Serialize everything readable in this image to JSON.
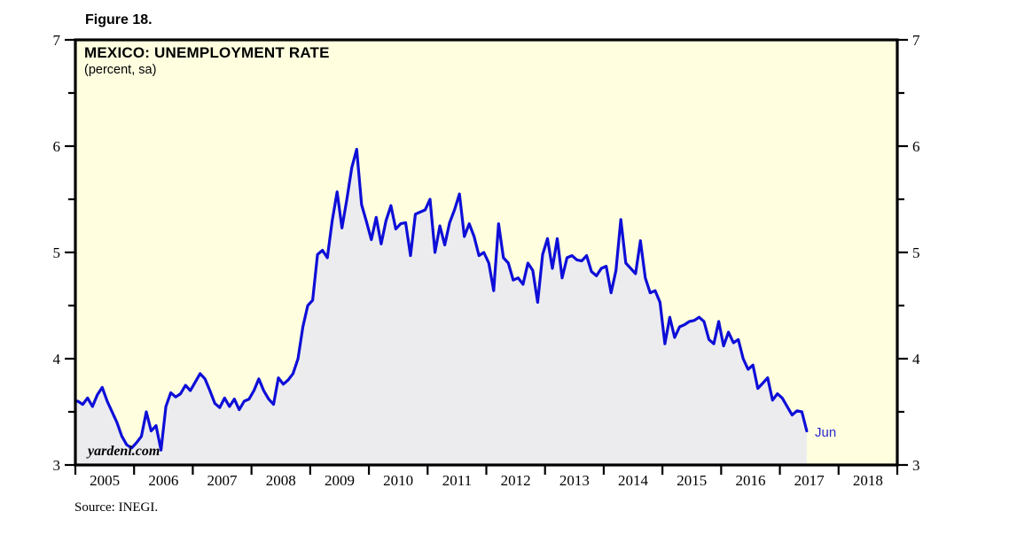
{
  "figure": {
    "label": "Figure 18."
  },
  "source_note": "Source: INEGI.",
  "chart_data": {
    "type": "area",
    "title": "MEXICO: UNEMPLOYMENT RATE",
    "subtitle": "(percent, sa)",
    "watermark": "yardeni.com",
    "last_point_label": "Jun",
    "grid": false,
    "legend": false,
    "x_axis": {
      "start_year": 2005,
      "end_year": 2019,
      "year_labels": [
        "2005",
        "2006",
        "2007",
        "2008",
        "2009",
        "2010",
        "2011",
        "2012",
        "2013",
        "2014",
        "2015",
        "2016",
        "2017",
        "2018"
      ]
    },
    "y_axis": {
      "min": 3,
      "max": 7,
      "major_ticks": [
        3,
        4,
        5,
        6,
        7
      ],
      "minor_ticks": [
        3.5,
        4.5,
        5.5,
        6.5
      ],
      "label_sides": "both"
    },
    "series": [
      {
        "name": "Mexico unemployment rate (percent, seasonally adjusted)",
        "freq": "monthly",
        "start": "2005-01",
        "end": "2017-06",
        "values": [
          3.6,
          3.57,
          3.63,
          3.55,
          3.66,
          3.73,
          3.6,
          3.5,
          3.4,
          3.27,
          3.19,
          3.16,
          3.21,
          3.27,
          3.5,
          3.32,
          3.37,
          3.14,
          3.55,
          3.68,
          3.64,
          3.67,
          3.75,
          3.7,
          3.78,
          3.86,
          3.81,
          3.7,
          3.58,
          3.54,
          3.63,
          3.55,
          3.62,
          3.52,
          3.6,
          3.62,
          3.7,
          3.81,
          3.7,
          3.62,
          3.57,
          3.82,
          3.76,
          3.8,
          3.86,
          4.0,
          4.3,
          4.5,
          4.55,
          4.98,
          5.02,
          4.95,
          5.3,
          5.57,
          5.23,
          5.5,
          5.8,
          5.97,
          5.45,
          5.29,
          5.12,
          5.33,
          5.08,
          5.3,
          5.44,
          5.22,
          5.27,
          5.28,
          4.97,
          5.36,
          5.38,
          5.4,
          5.5,
          5.0,
          5.25,
          5.07,
          5.28,
          5.4,
          5.55,
          5.15,
          5.27,
          5.15,
          4.97,
          5.0,
          4.9,
          4.64,
          5.27,
          4.95,
          4.9,
          4.74,
          4.76,
          4.7,
          4.9,
          4.83,
          4.53,
          4.98,
          5.13,
          4.85,
          5.13,
          4.76,
          4.95,
          4.97,
          4.93,
          4.92,
          4.97,
          4.82,
          4.78,
          4.85,
          4.87,
          4.62,
          4.83,
          5.31,
          4.9,
          4.85,
          4.8,
          5.11,
          4.76,
          4.62,
          4.64,
          4.53,
          4.14,
          4.39,
          4.2,
          4.3,
          4.32,
          4.35,
          4.36,
          4.39,
          4.35,
          4.18,
          4.14,
          4.35,
          4.12,
          4.25,
          4.15,
          4.18,
          4.0,
          3.9,
          3.94,
          3.72,
          3.77,
          3.82,
          3.61,
          3.67,
          3.63,
          3.55,
          3.47,
          3.51,
          3.5,
          3.32
        ]
      }
    ],
    "colors": {
      "plot_background": "#FFFFE0",
      "area_fill": "#ECECEF",
      "line": "#0E0ED8",
      "axis": "#000000",
      "annotation_blue": "#2929CE"
    }
  }
}
